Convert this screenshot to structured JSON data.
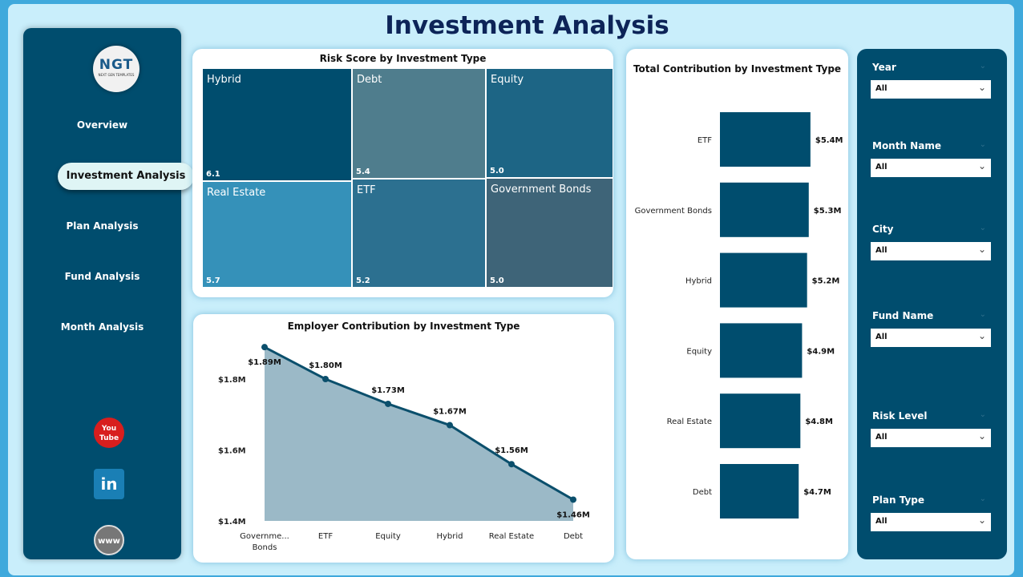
{
  "title": "Investment Analysis",
  "logo": {
    "text": "NGT",
    "subtext": "NEXT GEN TEMPLATES"
  },
  "nav": [
    {
      "label": "Overview"
    },
    {
      "label": "Investment Analysis",
      "active": true
    },
    {
      "label": "Plan Analysis"
    },
    {
      "label": "Fund Analysis"
    },
    {
      "label": "Month Analysis"
    }
  ],
  "social": [
    {
      "icon": "youtube-icon",
      "label": "You Tube",
      "color": "#d81e1e"
    },
    {
      "icon": "linkedin-icon",
      "label": "in",
      "color": "#1a7fb5"
    },
    {
      "icon": "globe-icon",
      "label": "www",
      "color": "#777777"
    }
  ],
  "filters": [
    {
      "label": "Year",
      "value": "All"
    },
    {
      "label": "Month Name",
      "value": "All"
    },
    {
      "label": "City",
      "value": "All"
    },
    {
      "label": "Fund Name",
      "value": "All"
    },
    {
      "label": "Risk Level",
      "value": "All"
    },
    {
      "label": "Plan Type",
      "value": "All"
    }
  ],
  "chart_data": [
    {
      "type": "treemap",
      "title": "Risk Score by Investment Type",
      "items": [
        {
          "name": "Hybrid",
          "value": 6.1,
          "label": "6.1",
          "color": "#004d6e"
        },
        {
          "name": "Real Estate",
          "value": 5.7,
          "label": "5.7",
          "color": "#3591b9"
        },
        {
          "name": "Debt",
          "value": 5.4,
          "label": "5.4",
          "color": "#4f7d8d"
        },
        {
          "name": "ETF",
          "value": 5.2,
          "label": "5.2",
          "color": "#2c7090"
        },
        {
          "name": "Equity",
          "value": 5.0,
          "label": "5.0",
          "color": "#1d6585"
        },
        {
          "name": "Government Bonds",
          "value": 5.0,
          "label": "5.0",
          "color": "#3e6478"
        }
      ]
    },
    {
      "type": "area",
      "title": "Employer Contribution by Investment Type",
      "categories": [
        "Governme... Bonds",
        "ETF",
        "Equity",
        "Hybrid",
        "Real Estate",
        "Debt"
      ],
      "values": [
        1.89,
        1.8,
        1.73,
        1.67,
        1.56,
        1.46
      ],
      "labels": [
        "$1.89M",
        "$1.80M",
        "$1.73M",
        "$1.67M",
        "$1.56M",
        "$1.46M"
      ],
      "ylim": [
        1.4,
        1.9
      ],
      "yticks": [
        "$1.4M",
        "$1.6M",
        "$1.8M"
      ],
      "ytick_values": [
        1.4,
        1.6,
        1.8
      ],
      "line_color": "#0b4f6c",
      "fill_color": "#9bb9c7"
    },
    {
      "type": "bar",
      "orientation": "horizontal",
      "title": "Total Contribution by Investment Type",
      "categories": [
        "ETF",
        "Government Bonds",
        "Hybrid",
        "Equity",
        "Real Estate",
        "Debt"
      ],
      "values": [
        5.4,
        5.3,
        5.2,
        4.9,
        4.8,
        4.7
      ],
      "labels": [
        "$5.4M",
        "$5.3M",
        "$5.2M",
        "$4.9M",
        "$4.8M",
        "$4.7M"
      ],
      "color": "#004d6e"
    }
  ]
}
